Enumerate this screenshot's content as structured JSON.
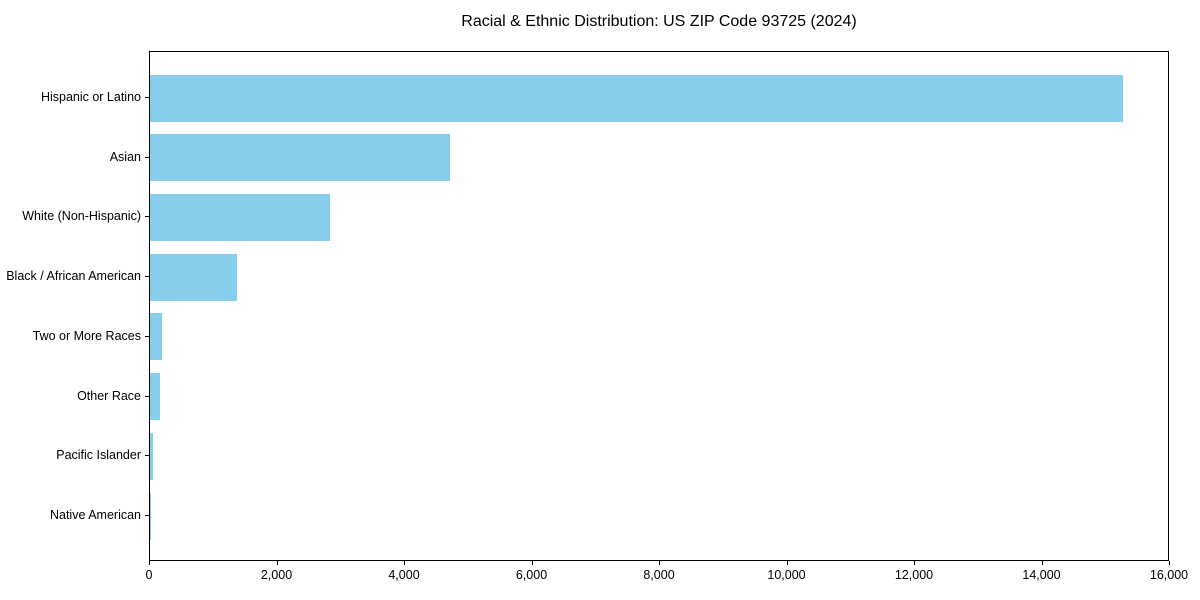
{
  "chart_data": {
    "type": "bar",
    "orientation": "horizontal",
    "title": "Racial & Ethnic Distribution: US ZIP Code 93725 (2024)",
    "categories": [
      "Hispanic or Latino",
      "Asian",
      "White (Non-Hispanic)",
      "Black / African American",
      "Two or More Races",
      "Other Race",
      "Pacific Islander",
      "Native American"
    ],
    "values": [
      15270,
      4710,
      2820,
      1370,
      190,
      150,
      45,
      10
    ],
    "xlabel": "",
    "ylabel": "",
    "xlim": [
      0,
      16000
    ],
    "x_ticks": [
      0,
      2000,
      4000,
      6000,
      8000,
      10000,
      12000,
      14000,
      16000
    ],
    "x_tick_labels": [
      "0",
      "2,000",
      "4,000",
      "6,000",
      "8,000",
      "10,000",
      "12,000",
      "14,000",
      "16,000"
    ],
    "bar_color": "#87CEEB",
    "axis_color": "#000000",
    "text_color": "#000000",
    "background_color": "#ffffff",
    "grid": false,
    "legend": false
  }
}
